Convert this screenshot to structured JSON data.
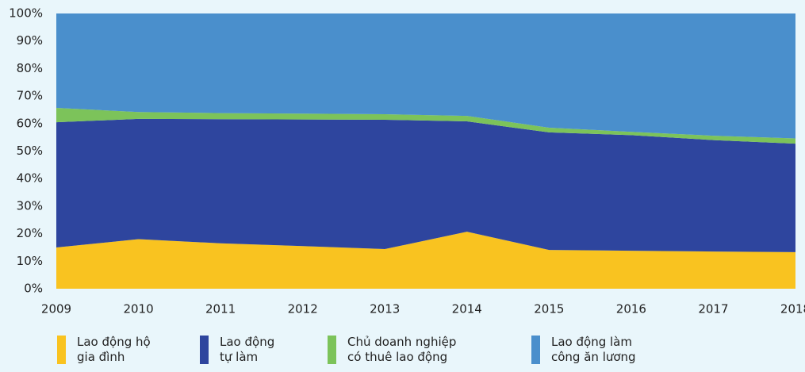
{
  "chart_data": {
    "type": "stacked_area",
    "categories": [
      "2009",
      "2010",
      "2011",
      "2012",
      "2013",
      "2014",
      "2015",
      "2016",
      "2017",
      "2018"
    ],
    "series": [
      {
        "name": "Lao động hộ\ngia đình",
        "color": "#f9c320",
        "values": [
          15,
          18,
          16.5,
          15.5,
          14.4,
          20.7,
          14.1,
          13.8,
          13.5,
          13.3
        ]
      },
      {
        "name": "Lao động\ntự làm",
        "color": "#2e459e",
        "values": [
          45.5,
          43.7,
          45.1,
          46,
          47,
          40.1,
          42.7,
          42,
          40.5,
          39.4
        ]
      },
      {
        "name": "Chủ doanh nghiệp\ncó thuê lao động",
        "color": "#7cc35a",
        "values": [
          5.2,
          2.5,
          2.2,
          2.1,
          2,
          2,
          1.7,
          1.2,
          1.6,
          1.9
        ]
      },
      {
        "name": "Lao động làm\ncông ăn lương",
        "color": "#4a8fcc",
        "values": [
          34.3,
          35.8,
          36.2,
          36.4,
          36.6,
          37.2,
          41.5,
          43,
          44.4,
          45.4
        ]
      }
    ],
    "ylim": [
      0,
      100
    ],
    "yticks": [
      {
        "value": 0,
        "label": "0%"
      },
      {
        "value": 10,
        "label": "10%"
      },
      {
        "value": 20,
        "label": "20%"
      },
      {
        "value": 30,
        "label": "30%"
      },
      {
        "value": 40,
        "label": "40%"
      },
      {
        "value": 50,
        "label": "50%"
      },
      {
        "value": 60,
        "label": "60%"
      },
      {
        "value": 70,
        "label": "70%"
      },
      {
        "value": 80,
        "label": "80%"
      },
      {
        "value": 90,
        "label": "90%"
      },
      {
        "value": 100,
        "label": "100%"
      }
    ],
    "grid": false
  }
}
